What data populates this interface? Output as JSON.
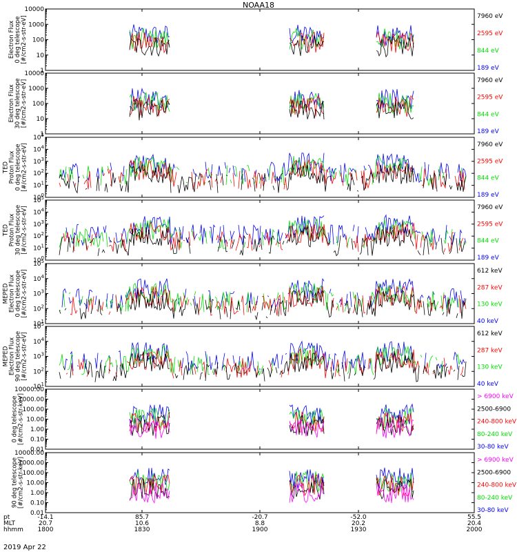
{
  "figure": {
    "title": "NOAA18",
    "date": "2019 Apr 22",
    "xaxis": {
      "row_labels": [
        "pt",
        "MLT",
        "hhmm"
      ],
      "ticks": [
        {
          "pt": "-14.1",
          "mlt": "20.7",
          "hhmm": "1800"
        },
        {
          "pt": "85.7",
          "mlt": "10.6",
          "hhmm": "1830"
        },
        {
          "pt": "-20.7",
          "mlt": "8.8",
          "hhmm": "1900"
        },
        {
          "pt": "-52.0",
          "mlt": "20.2",
          "hhmm": "1930"
        },
        {
          "pt": "55.5",
          "mlt": "20.4",
          "hhmm": "2000"
        }
      ]
    }
  },
  "colors": {
    "black": "#000000",
    "red": "#ff0000",
    "green": "#00e000",
    "blue": "#0000ff",
    "magenta": "#ff00ff"
  },
  "chart_data": [
    {
      "type": "line",
      "ylabel": [
        "Electron Flux",
        "0 deg telescope",
        "[#/cm2-s-str-eV]"
      ],
      "yscale": "log",
      "ylim": [
        1,
        10000
      ],
      "ytick_labels": [
        "1",
        "10",
        "100",
        "1000",
        "10000"
      ],
      "ytick_values": [
        1,
        10,
        100,
        1000,
        10000
      ],
      "series": [
        {
          "name": "7960 eV",
          "color": "black"
        },
        {
          "name": "2595 eV",
          "color": "red"
        },
        {
          "name": "844 eV",
          "color": "green"
        },
        {
          "name": "189 eV",
          "color": "blue"
        }
      ]
    },
    {
      "type": "line",
      "ylabel": [
        "Electron Flux",
        "30 deg telescope",
        "[#/cm2-s-str-eV]"
      ],
      "yscale": "log",
      "ylim": [
        1,
        10000
      ],
      "ytick_labels": [
        "1",
        "10",
        "100",
        "1000",
        "10000"
      ],
      "ytick_values": [
        1,
        10,
        100,
        1000,
        10000
      ],
      "series": [
        {
          "name": "7960 eV",
          "color": "black"
        },
        {
          "name": "2595 eV",
          "color": "red"
        },
        {
          "name": "844 eV",
          "color": "green"
        },
        {
          "name": "189 eV",
          "color": "blue"
        }
      ]
    },
    {
      "type": "line",
      "ylabel": [
        "TED",
        "Proton Flux",
        "0 deg telescope",
        "[#/cm2-s-str-eV]"
      ],
      "yscale": "log",
      "ylim": [
        1,
        100000
      ],
      "ytick_labels": [
        "10^0",
        "10^1",
        "10^2",
        "10^3",
        "10^4",
        "10^5"
      ],
      "ytick_values": [
        1,
        10,
        100,
        1000,
        10000,
        100000
      ],
      "series": [
        {
          "name": "7960 eV",
          "color": "black"
        },
        {
          "name": "2595 eV",
          "color": "red"
        },
        {
          "name": "844 eV",
          "color": "green"
        },
        {
          "name": "189 eV",
          "color": "blue"
        }
      ]
    },
    {
      "type": "line",
      "ylabel": [
        "TED",
        "Proton Flux",
        "30 deg telescope",
        "[#/cm2-s-str-eV]"
      ],
      "yscale": "log",
      "ylim": [
        1,
        100000
      ],
      "ytick_labels": [
        "10^0",
        "10^1",
        "10^2",
        "10^3",
        "10^4",
        "10^5"
      ],
      "ytick_values": [
        1,
        10,
        100,
        1000,
        10000,
        100000
      ],
      "series": [
        {
          "name": "7960 eV",
          "color": "black"
        },
        {
          "name": "2595 eV",
          "color": "red"
        },
        {
          "name": "844 eV",
          "color": "green"
        },
        {
          "name": "189 eV",
          "color": "blue"
        }
      ]
    },
    {
      "type": "line",
      "ylabel": [
        "MEPED",
        "Electron Flux",
        "0 deg telescope",
        "[#/cm2-s-str-eV]"
      ],
      "yscale": "log",
      "ylim": [
        10,
        100000
      ],
      "ytick_labels": [
        "10^1",
        "10^2",
        "10^3",
        "10^4",
        "10^5"
      ],
      "ytick_values": [
        10,
        100,
        1000,
        10000,
        100000
      ],
      "series": [
        {
          "name": "612 keV",
          "color": "black"
        },
        {
          "name": "287 keV",
          "color": "red"
        },
        {
          "name": "130 keV",
          "color": "green"
        },
        {
          "name": "40 keV",
          "color": "blue"
        }
      ]
    },
    {
      "type": "line",
      "ylabel": [
        "MEPED",
        "Electron Flux",
        "90 deg telescope",
        "[#/cm2-s-str-eV]"
      ],
      "yscale": "log",
      "ylim": [
        10,
        100000
      ],
      "ytick_labels": [
        "10^1",
        "10^2",
        "10^3",
        "10^4",
        "10^5"
      ],
      "ytick_values": [
        10,
        100,
        1000,
        10000,
        100000
      ],
      "series": [
        {
          "name": "612 keV",
          "color": "black"
        },
        {
          "name": "287 keV",
          "color": "red"
        },
        {
          "name": "130 keV",
          "color": "green"
        },
        {
          "name": "40 keV",
          "color": "blue"
        }
      ]
    },
    {
      "type": "line",
      "ylabel": [
        "0 deg telescope",
        "[#/cm2-s-str-keV]"
      ],
      "yscale": "log",
      "ylim": [
        0.01,
        10000
      ],
      "ytick_labels": [
        "0.01",
        "0.10",
        "1.00",
        "10.00",
        "100.00",
        "1000.00",
        "10000.00"
      ],
      "ytick_values": [
        0.01,
        0.1,
        1,
        10,
        100,
        1000,
        10000
      ],
      "series": [
        {
          "name": "> 6900 keV",
          "color": "magenta"
        },
        {
          "name": "2500-6900",
          "color": "black"
        },
        {
          "name": "240-800 keV",
          "color": "red"
        },
        {
          "name": "80-240 keV",
          "color": "green"
        },
        {
          "name": "30-80 keV",
          "color": "blue"
        }
      ]
    },
    {
      "type": "line",
      "ylabel": [
        "90 deg telescope",
        "[#/cm2-s-str-keV]"
      ],
      "yscale": "log",
      "ylim": [
        0.01,
        10000
      ],
      "ytick_labels": [
        "0.01",
        "0.10",
        "1.00",
        "10.00",
        "100.00",
        "1000.00",
        "10000.00"
      ],
      "ytick_values": [
        0.01,
        0.1,
        1,
        10,
        100,
        1000,
        10000
      ],
      "series": [
        {
          "name": "> 6900 keV",
          "color": "magenta"
        },
        {
          "name": "2500-6900",
          "color": "black"
        },
        {
          "name": "240-800 keV",
          "color": "red"
        },
        {
          "name": "80-240 keV",
          "color": "green"
        },
        {
          "name": "30-80 keV",
          "color": "blue"
        }
      ]
    }
  ]
}
